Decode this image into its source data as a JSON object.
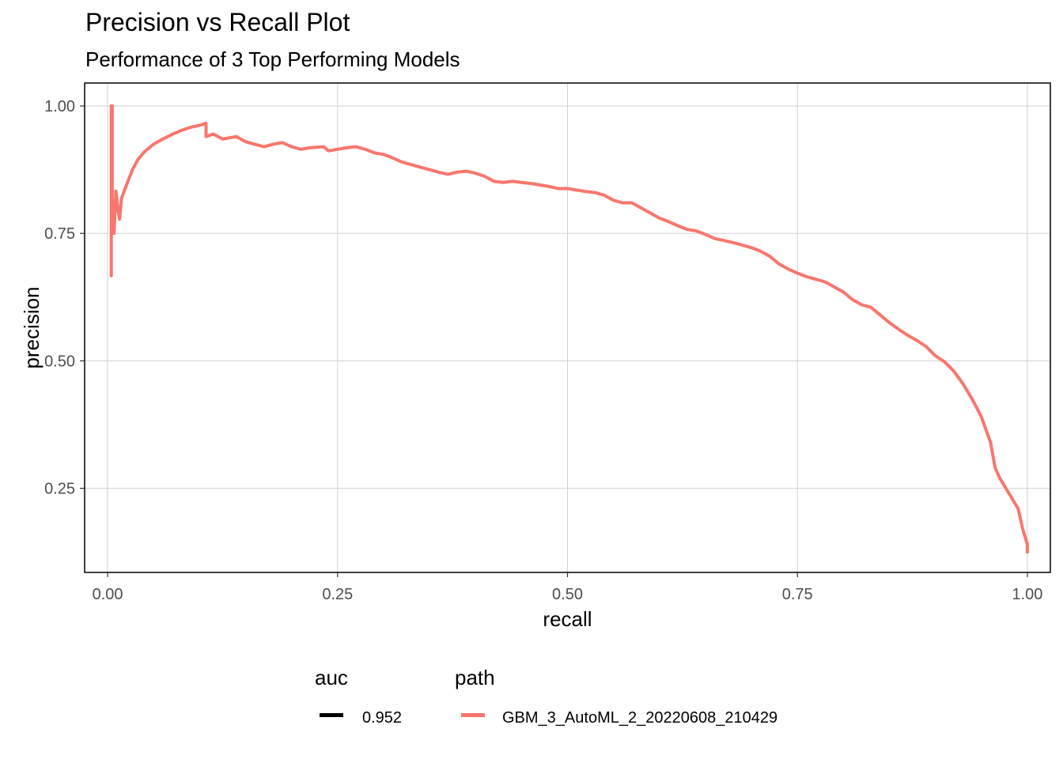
{
  "chart_data": {
    "type": "line",
    "title": "Precision vs Recall Plot",
    "subtitle": "Performance of 3 Top Performing Models",
    "xlabel": "recall",
    "ylabel": "precision",
    "xlim": [
      -0.025,
      1.025
    ],
    "ylim": [
      0.085,
      1.045
    ],
    "x_ticks": [
      "0.00",
      "0.25",
      "0.50",
      "0.75",
      "1.00"
    ],
    "y_ticks": [
      "0.25",
      "0.50",
      "0.75",
      "1.00"
    ],
    "grid": true,
    "legend_position": "bottom",
    "legend": {
      "auc": {
        "title": "auc",
        "entries": [
          {
            "label": "0.952",
            "color": "#000000"
          }
        ]
      },
      "path": {
        "title": "path",
        "entries": [
          {
            "label": "GBM_3_AutoML_2_20220608_210429",
            "color": "#F8766D"
          }
        ]
      }
    },
    "series": [
      {
        "name": "GBM_3_AutoML_2_20220608_210429",
        "color": "#F8766D",
        "points": [
          [
            0.004,
            0.667
          ],
          [
            0.004,
            1.0
          ],
          [
            0.005,
            1.0
          ],
          [
            0.005,
            0.75
          ],
          [
            0.006,
            0.8
          ],
          [
            0.007,
            0.75
          ],
          [
            0.009,
            0.833
          ],
          [
            0.011,
            0.8
          ],
          [
            0.013,
            0.778
          ],
          [
            0.015,
            0.818
          ],
          [
            0.018,
            0.833
          ],
          [
            0.022,
            0.852
          ],
          [
            0.027,
            0.875
          ],
          [
            0.033,
            0.895
          ],
          [
            0.04,
            0.91
          ],
          [
            0.05,
            0.925
          ],
          [
            0.06,
            0.935
          ],
          [
            0.07,
            0.944
          ],
          [
            0.08,
            0.952
          ],
          [
            0.09,
            0.958
          ],
          [
            0.1,
            0.962
          ],
          [
            0.107,
            0.966
          ],
          [
            0.107,
            0.94
          ],
          [
            0.115,
            0.945
          ],
          [
            0.125,
            0.935
          ],
          [
            0.14,
            0.94
          ],
          [
            0.15,
            0.93
          ],
          [
            0.16,
            0.925
          ],
          [
            0.17,
            0.92
          ],
          [
            0.18,
            0.925
          ],
          [
            0.19,
            0.928
          ],
          [
            0.2,
            0.92
          ],
          [
            0.21,
            0.915
          ],
          [
            0.22,
            0.918
          ],
          [
            0.235,
            0.92
          ],
          [
            0.24,
            0.912
          ],
          [
            0.25,
            0.915
          ],
          [
            0.26,
            0.918
          ],
          [
            0.27,
            0.92
          ],
          [
            0.28,
            0.915
          ],
          [
            0.29,
            0.908
          ],
          [
            0.3,
            0.905
          ],
          [
            0.31,
            0.898
          ],
          [
            0.32,
            0.89
          ],
          [
            0.33,
            0.885
          ],
          [
            0.34,
            0.88
          ],
          [
            0.35,
            0.875
          ],
          [
            0.36,
            0.87
          ],
          [
            0.37,
            0.866
          ],
          [
            0.38,
            0.87
          ],
          [
            0.39,
            0.872
          ],
          [
            0.4,
            0.868
          ],
          [
            0.41,
            0.862
          ],
          [
            0.42,
            0.852
          ],
          [
            0.43,
            0.85
          ],
          [
            0.44,
            0.852
          ],
          [
            0.45,
            0.85
          ],
          [
            0.46,
            0.848
          ],
          [
            0.47,
            0.845
          ],
          [
            0.48,
            0.842
          ],
          [
            0.49,
            0.838
          ],
          [
            0.5,
            0.838
          ],
          [
            0.51,
            0.835
          ],
          [
            0.52,
            0.832
          ],
          [
            0.53,
            0.83
          ],
          [
            0.54,
            0.825
          ],
          [
            0.55,
            0.815
          ],
          [
            0.56,
            0.81
          ],
          [
            0.57,
            0.81
          ],
          [
            0.58,
            0.8
          ],
          [
            0.59,
            0.79
          ],
          [
            0.6,
            0.78
          ],
          [
            0.61,
            0.773
          ],
          [
            0.62,
            0.765
          ],
          [
            0.63,
            0.758
          ],
          [
            0.64,
            0.755
          ],
          [
            0.65,
            0.748
          ],
          [
            0.66,
            0.74
          ],
          [
            0.67,
            0.736
          ],
          [
            0.68,
            0.732
          ],
          [
            0.69,
            0.727
          ],
          [
            0.7,
            0.722
          ],
          [
            0.71,
            0.715
          ],
          [
            0.72,
            0.705
          ],
          [
            0.73,
            0.69
          ],
          [
            0.74,
            0.68
          ],
          [
            0.75,
            0.672
          ],
          [
            0.76,
            0.665
          ],
          [
            0.77,
            0.66
          ],
          [
            0.78,
            0.655
          ],
          [
            0.79,
            0.645
          ],
          [
            0.8,
            0.635
          ],
          [
            0.81,
            0.62
          ],
          [
            0.82,
            0.61
          ],
          [
            0.83,
            0.605
          ],
          [
            0.84,
            0.59
          ],
          [
            0.85,
            0.575
          ],
          [
            0.86,
            0.562
          ],
          [
            0.87,
            0.55
          ],
          [
            0.88,
            0.54
          ],
          [
            0.89,
            0.528
          ],
          [
            0.9,
            0.51
          ],
          [
            0.91,
            0.498
          ],
          [
            0.92,
            0.48
          ],
          [
            0.93,
            0.455
          ],
          [
            0.94,
            0.425
          ],
          [
            0.95,
            0.39
          ],
          [
            0.96,
            0.34
          ],
          [
            0.965,
            0.29
          ],
          [
            0.97,
            0.27
          ],
          [
            0.98,
            0.24
          ],
          [
            0.99,
            0.21
          ],
          [
            0.995,
            0.17
          ],
          [
            1.0,
            0.14
          ],
          [
            1.0,
            0.125
          ]
        ]
      }
    ]
  }
}
